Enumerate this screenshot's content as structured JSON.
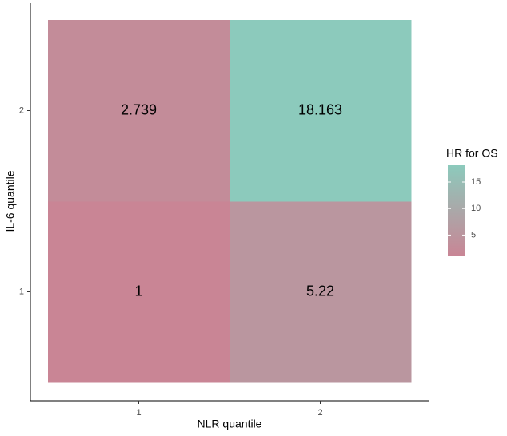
{
  "chart_data": {
    "type": "heatmap",
    "x_label": "NLR quantile",
    "y_label": "IL-6 quantile",
    "x_categories": [
      "1",
      "2"
    ],
    "y_categories": [
      "1",
      "2"
    ],
    "values": [
      [
        1,
        5.22
      ],
      [
        2.739,
        18.163
      ]
    ],
    "legend_title": "HR for OS",
    "colorscale": {
      "low": "#c98595",
      "high": "#8ccabc"
    },
    "cticks": [
      5,
      10,
      15
    ]
  }
}
